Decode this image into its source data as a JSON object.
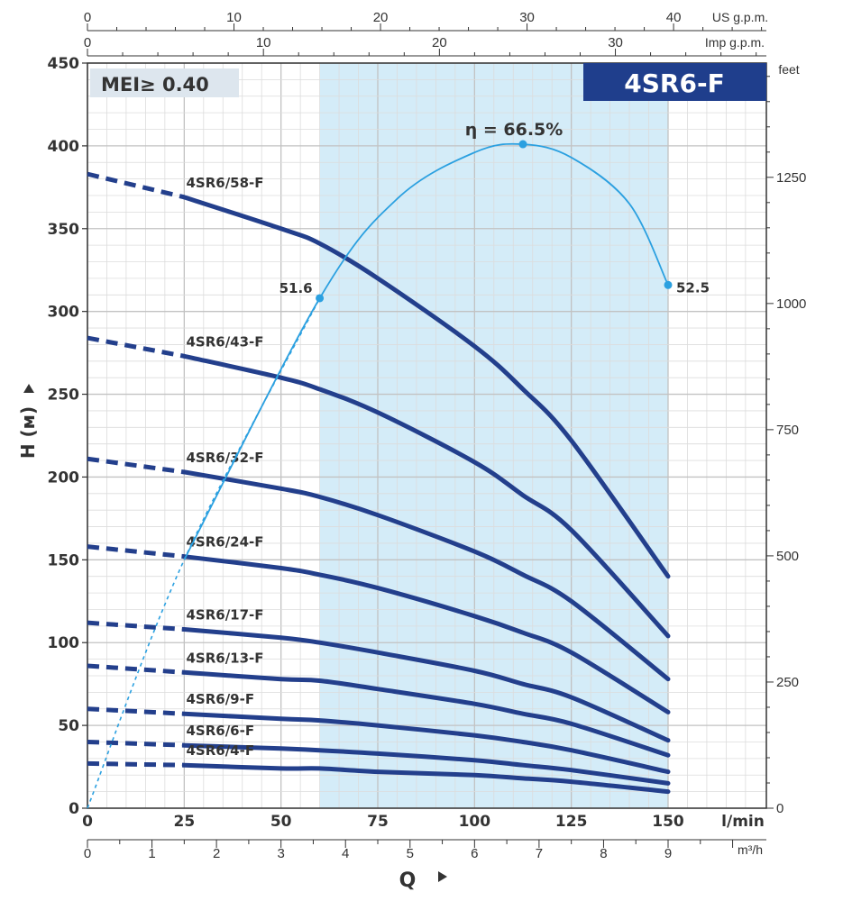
{
  "chart_data": {
    "type": "line",
    "title": "4SR6-F",
    "badge": "MEI≥ 0.40",
    "xlabel": "Q",
    "ylabel": "H (м)",
    "x_unit": "l/min",
    "xlim": [
      0,
      150
    ],
    "ylim": [
      0,
      450
    ],
    "x_ticks": [
      0,
      25,
      50,
      75,
      100,
      125,
      150
    ],
    "y_ticks": [
      0,
      50,
      100,
      150,
      200,
      250,
      300,
      350,
      400,
      450
    ],
    "grid": true,
    "secondary_axes": {
      "us_gpm": {
        "label": "US g.p.m.",
        "ticks": [
          0,
          10,
          20,
          30,
          40
        ]
      },
      "imp_gpm": {
        "label": "Imp g.p.m.",
        "ticks": [
          0,
          10,
          20,
          30
        ]
      },
      "feet": {
        "label": "feet",
        "ticks": [
          0,
          250,
          500,
          750,
          1000,
          1250
        ]
      },
      "m3h": {
        "label": "m³/h",
        "ticks": [
          0,
          1,
          2,
          3,
          4,
          5,
          6,
          7,
          8,
          9
        ]
      }
    },
    "operating_range": [
      60,
      150
    ],
    "x": [
      0,
      25,
      50,
      60,
      75,
      100,
      112.5,
      125,
      150
    ],
    "series": [
      {
        "name": "4SR6/58-F",
        "values": [
          383,
          369,
          350,
          341,
          320,
          279,
          253,
          222,
          140
        ]
      },
      {
        "name": "4SR6/43-F",
        "values": [
          284,
          273,
          260,
          253,
          239,
          209,
          189,
          168,
          104
        ]
      },
      {
        "name": "4SR6/32-F",
        "values": [
          211,
          203,
          193,
          188,
          177,
          155,
          141,
          125,
          78
        ]
      },
      {
        "name": "4SR6/24-F",
        "values": [
          158,
          152,
          145,
          141,
          133,
          116,
          106,
          94,
          58
        ]
      },
      {
        "name": "4SR6/17-F",
        "values": [
          112,
          108,
          103,
          100,
          94,
          83,
          75,
          67,
          41
        ]
      },
      {
        "name": "4SR6/13-F",
        "values": [
          86,
          82,
          78,
          77,
          72,
          63,
          57,
          51,
          32
        ]
      },
      {
        "name": "4SR6/9-F",
        "values": [
          60,
          57,
          54,
          53,
          50,
          44,
          40,
          35,
          22
        ]
      },
      {
        "name": "4SR6/6-F",
        "values": [
          40,
          38,
          36,
          35,
          33,
          29,
          26,
          23,
          15
        ]
      },
      {
        "name": "4SR6/4-F",
        "values": [
          27,
          26,
          24,
          24,
          22,
          20,
          18,
          16,
          10
        ]
      }
    ],
    "efficiency_curve": {
      "name": "η",
      "peak_label": "η = 66.5%",
      "points": [
        {
          "x": 0,
          "y": 0
        },
        {
          "x": 25,
          "y": 150
        },
        {
          "x": 60,
          "y": 308,
          "label": "51.6"
        },
        {
          "x": 80,
          "y": 368
        },
        {
          "x": 100,
          "y": 396
        },
        {
          "x": 112.5,
          "y": 401
        },
        {
          "x": 125,
          "y": 393
        },
        {
          "x": 140,
          "y": 365
        },
        {
          "x": 150,
          "y": 316,
          "label": "52.5"
        }
      ]
    },
    "colors": {
      "curve": "#233f8c",
      "efficiency": "#2ba0e0",
      "range_fill": "#d4ecf8",
      "title_bg": "#1f3e8c",
      "grid": "#d4d4d4"
    }
  }
}
